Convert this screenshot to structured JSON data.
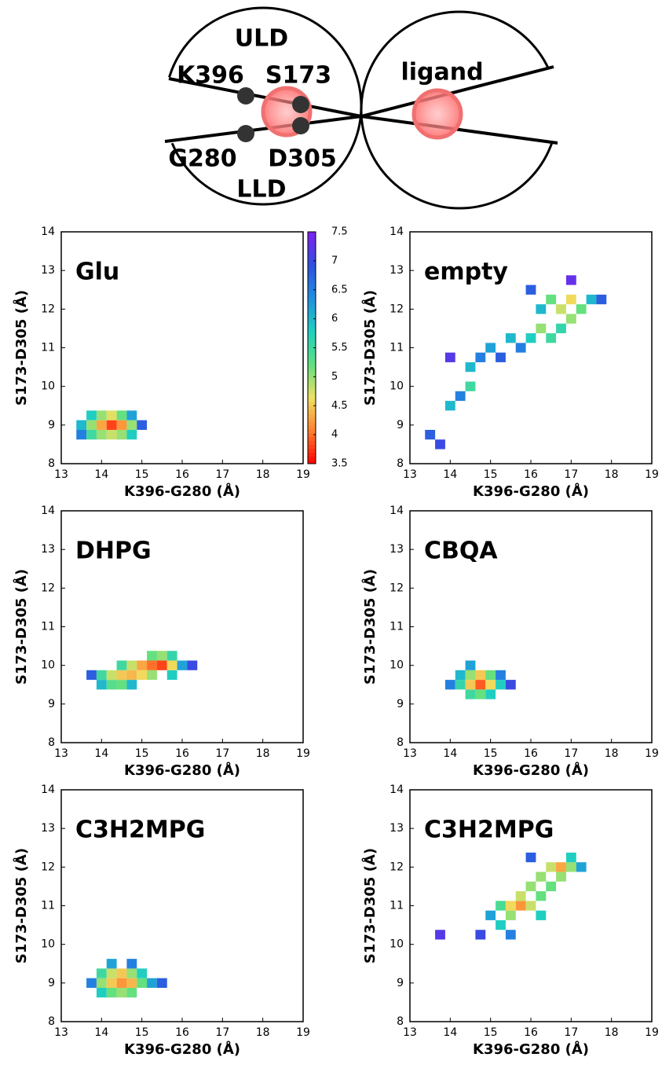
{
  "diagram": {
    "labels": [
      "ULD",
      "K396",
      "S173",
      "ligand",
      "G280",
      "D305",
      "LLD"
    ]
  },
  "colorbar": {
    "lim": [
      3.5,
      7.5
    ],
    "ticks": [
      3.5,
      4,
      4.5,
      5,
      5.5,
      6,
      6.5,
      7,
      7.5
    ],
    "colors": [
      "#ff0000",
      "#ff8030",
      "#f0e060",
      "#60e080",
      "#20d0c0",
      "#2090e0",
      "#3050e0",
      "#8020f0"
    ]
  },
  "chart_data": [
    {
      "type": "heatmap",
      "title": "Glu",
      "x_label": "K396-G280 (Å)",
      "y_label": "S173-D305 (Å)",
      "xlim": [
        13,
        19
      ],
      "ylim": [
        8,
        14
      ],
      "xticks": [
        13,
        14,
        15,
        16,
        17,
        18,
        19
      ],
      "yticks": [
        8,
        9,
        10,
        11,
        12,
        13,
        14
      ],
      "x": [
        13.5,
        13.75,
        14.0,
        14.25,
        14.5,
        14.75,
        13.5,
        13.75,
        14.0,
        14.25,
        14.5,
        14.75,
        15.0,
        13.75,
        14.0,
        14.25,
        14.5,
        14.75
      ],
      "y": [
        8.75,
        8.75,
        8.75,
        8.75,
        8.75,
        8.75,
        9.0,
        9.0,
        9.0,
        9.0,
        9.0,
        9.0,
        9.0,
        9.25,
        9.25,
        9.25,
        9.25,
        9.25
      ],
      "values": [
        6.5,
        5.5,
        5.0,
        4.8,
        5.0,
        5.8,
        6.0,
        5.0,
        4.3,
        3.8,
        4.2,
        5.0,
        6.8,
        5.8,
        5.0,
        4.7,
        5.2,
        6.2
      ]
    },
    {
      "type": "heatmap",
      "title": "empty",
      "x_label": "K396-G280 (Å)",
      "y_label": "S173-D305 (Å)",
      "xlim": [
        13,
        19
      ],
      "ylim": [
        8,
        14
      ],
      "xticks": [
        13,
        14,
        15,
        16,
        17,
        18,
        19
      ],
      "yticks": [
        8,
        9,
        10,
        11,
        12,
        13,
        14
      ],
      "x": [
        13.5,
        13.75,
        14.0,
        14.0,
        14.25,
        14.5,
        14.5,
        14.75,
        15.0,
        15.25,
        15.5,
        15.75,
        16.0,
        16.25,
        16.25,
        16.5,
        16.5,
        16.75,
        17.0,
        17.0,
        17.25,
        17.5,
        17.75,
        16.75,
        16.0,
        17.0
      ],
      "y": [
        8.75,
        8.5,
        9.5,
        10.75,
        9.75,
        10.0,
        10.5,
        10.75,
        11.0,
        10.75,
        11.25,
        11.0,
        11.25,
        11.5,
        12.0,
        11.25,
        12.25,
        12.0,
        12.25,
        11.75,
        12.0,
        12.25,
        12.25,
        11.5,
        12.5,
        12.75
      ],
      "values": [
        6.8,
        7.0,
        6.0,
        7.2,
        6.5,
        5.5,
        6.0,
        6.5,
        6.2,
        6.8,
        6.0,
        6.5,
        5.8,
        5.0,
        6.0,
        5.5,
        5.2,
        4.8,
        4.6,
        5.0,
        5.2,
        6.0,
        6.8,
        5.6,
        6.8,
        7.3
      ]
    },
    {
      "type": "heatmap",
      "title": "DHPG",
      "x_label": "K396-G280 (Å)",
      "y_label": "S173-D305 (Å)",
      "xlim": [
        13,
        19
      ],
      "ylim": [
        8,
        14
      ],
      "xticks": [
        13,
        14,
        15,
        16,
        17,
        18,
        19
      ],
      "yticks": [
        8,
        9,
        10,
        11,
        12,
        13,
        14
      ],
      "x": [
        13.75,
        14.0,
        14.0,
        14.25,
        14.25,
        14.5,
        14.5,
        14.5,
        14.75,
        14.75,
        15.0,
        15.0,
        15.25,
        15.25,
        15.25,
        15.5,
        15.5,
        15.75,
        15.75,
        15.75,
        16.0,
        16.25,
        14.75
      ],
      "y": [
        9.75,
        9.5,
        9.75,
        9.5,
        9.75,
        9.5,
        9.75,
        10.0,
        9.75,
        10.0,
        9.75,
        10.0,
        9.75,
        10.0,
        10.25,
        10.0,
        10.25,
        9.75,
        10.0,
        10.25,
        10.0,
        10.0,
        9.5
      ],
      "values": [
        6.8,
        6.0,
        5.5,
        5.3,
        4.8,
        5.2,
        4.5,
        5.5,
        4.4,
        4.8,
        4.6,
        4.3,
        5.0,
        4.0,
        5.2,
        3.8,
        5.0,
        5.8,
        4.6,
        5.6,
        6.2,
        7.0,
        6.0
      ]
    },
    {
      "type": "heatmap",
      "title": "CBQA",
      "x_label": "K396-G280 (Å)",
      "y_label": "S173-D305 (Å)",
      "xlim": [
        13,
        19
      ],
      "ylim": [
        8,
        14
      ],
      "xticks": [
        13,
        14,
        15,
        16,
        17,
        18,
        19
      ],
      "yticks": [
        8,
        9,
        10,
        11,
        12,
        13,
        14
      ],
      "x": [
        14.0,
        14.25,
        14.25,
        14.5,
        14.5,
        14.5,
        14.75,
        14.75,
        14.75,
        15.0,
        15.0,
        15.0,
        15.25,
        15.25,
        15.5,
        14.5
      ],
      "y": [
        9.5,
        9.5,
        9.75,
        9.25,
        9.5,
        9.75,
        9.5,
        9.75,
        9.25,
        9.5,
        9.75,
        9.25,
        9.5,
        9.75,
        9.5,
        10.0
      ],
      "values": [
        6.5,
        5.6,
        6.0,
        5.5,
        4.5,
        5.0,
        3.9,
        4.5,
        5.2,
        4.6,
        5.2,
        5.8,
        5.8,
        6.5,
        7.0,
        6.2
      ]
    },
    {
      "type": "heatmap",
      "title": "C3H2MPG",
      "x_label": "K396-G280 (Å)",
      "y_label": "S173-D305 (Å)",
      "xlim": [
        13,
        19
      ],
      "ylim": [
        8,
        14
      ],
      "xticks": [
        13,
        14,
        15,
        16,
        17,
        18,
        19
      ],
      "yticks": [
        8,
        9,
        10,
        11,
        12,
        13,
        14
      ],
      "x": [
        13.75,
        14.0,
        14.0,
        14.0,
        14.25,
        14.25,
        14.25,
        14.5,
        14.5,
        14.5,
        14.75,
        14.75,
        14.75,
        15.0,
        15.0,
        15.25,
        14.25,
        14.75,
        15.5
      ],
      "y": [
        9.0,
        8.75,
        9.0,
        9.25,
        8.75,
        9.0,
        9.25,
        8.75,
        9.0,
        9.25,
        8.75,
        9.0,
        9.25,
        9.0,
        9.25,
        9.0,
        9.5,
        9.5,
        9.0
      ],
      "values": [
        6.5,
        5.8,
        5.0,
        5.5,
        5.2,
        4.5,
        4.8,
        5.0,
        4.2,
        4.5,
        5.2,
        4.4,
        5.0,
        5.2,
        5.8,
        6.2,
        6.2,
        6.5,
        6.8
      ]
    },
    {
      "type": "heatmap",
      "title": "C3H2MPG",
      "x_label": "K396-G280 (Å)",
      "y_label": "S173-D305 (Å)",
      "xlim": [
        13,
        19
      ],
      "ylim": [
        8,
        14
      ],
      "xticks": [
        13,
        14,
        15,
        16,
        17,
        18,
        19
      ],
      "yticks": [
        8,
        9,
        10,
        11,
        12,
        13,
        14
      ],
      "x": [
        15.0,
        15.25,
        15.25,
        15.5,
        15.5,
        15.75,
        15.75,
        16.0,
        16.0,
        16.25,
        16.25,
        16.5,
        16.5,
        16.75,
        16.75,
        17.0,
        17.0,
        17.25,
        16.0,
        14.75,
        13.75,
        16.25,
        15.5
      ],
      "y": [
        10.75,
        10.5,
        11.0,
        10.75,
        11.0,
        11.0,
        11.25,
        11.0,
        11.5,
        11.25,
        11.75,
        11.5,
        12.0,
        12.0,
        11.75,
        12.0,
        12.25,
        12.0,
        12.25,
        10.25,
        10.25,
        10.75,
        10.25
      ],
      "values": [
        6.2,
        5.8,
        5.4,
        5.0,
        4.6,
        4.2,
        4.8,
        4.8,
        5.0,
        5.2,
        5.0,
        5.2,
        4.8,
        4.3,
        5.0,
        5.0,
        5.8,
        6.2,
        6.8,
        7.0,
        7.2,
        5.8,
        6.5
      ]
    }
  ]
}
